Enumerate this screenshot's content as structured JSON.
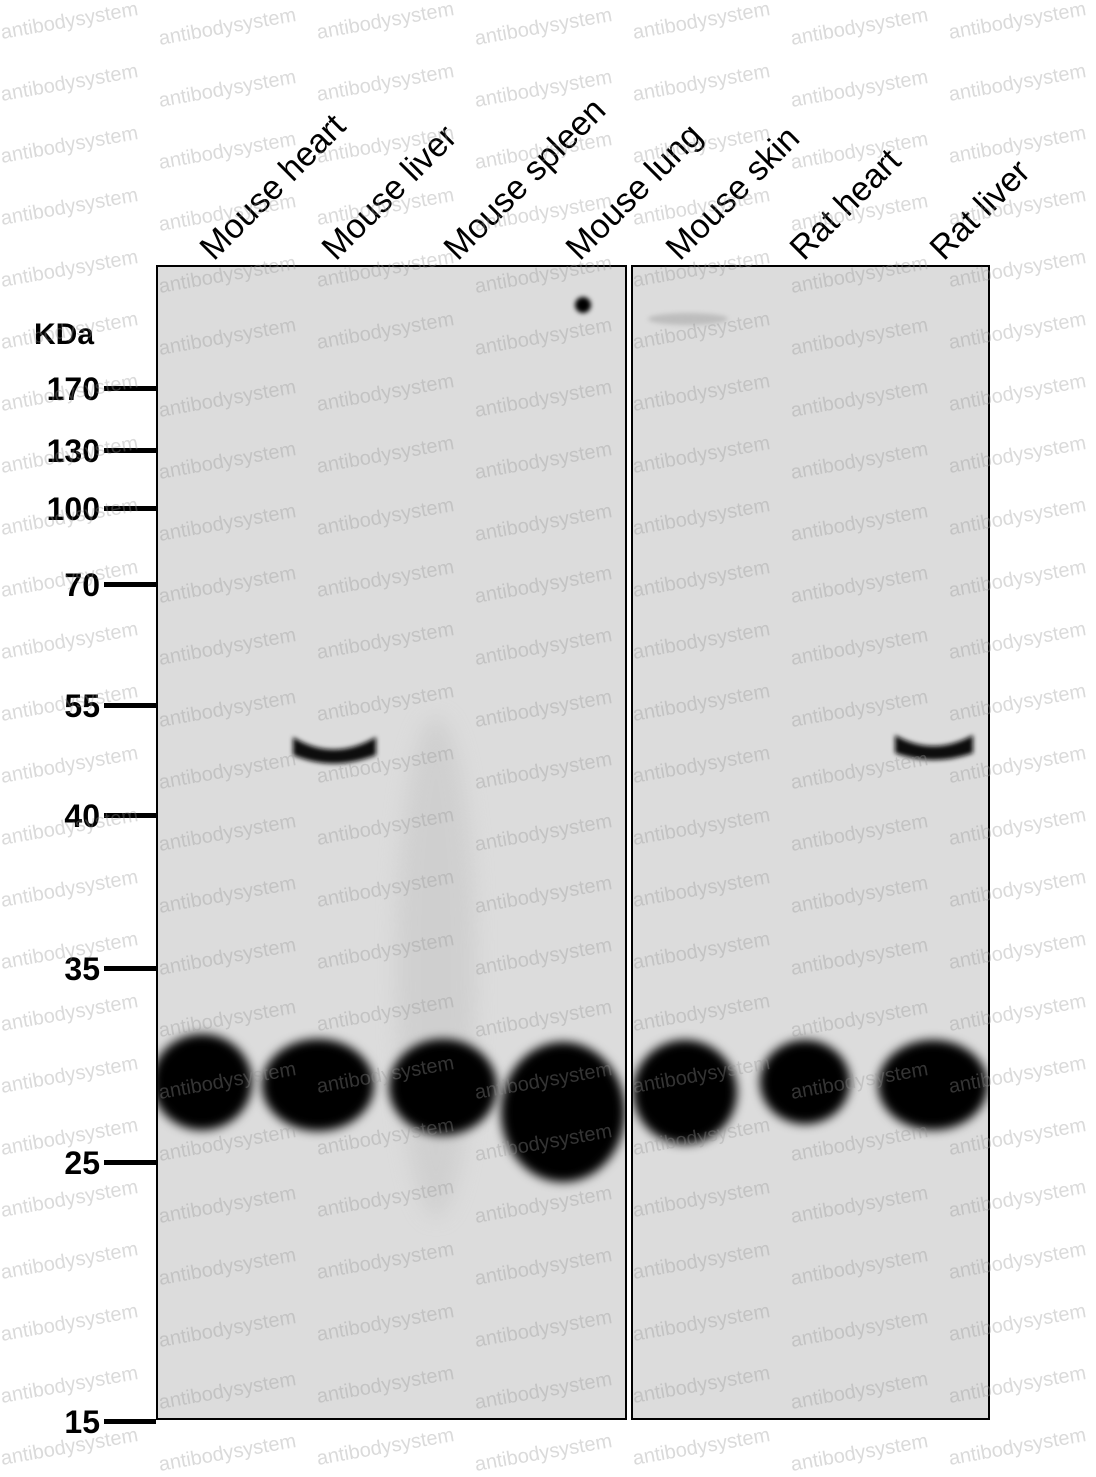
{
  "lanes": [
    "Mouse heart",
    "Mouse liver",
    "Mouse spleen",
    "Mouse lung",
    "Mouse skin",
    "Rat heart",
    "Rat liver"
  ],
  "unit": "KDa",
  "markers": [
    "170",
    "130",
    "100",
    "70",
    "55",
    "40",
    "35",
    "25",
    "15"
  ],
  "watermark": "antibodysystem",
  "colors": {
    "membrane": "#dcdcdc",
    "band": "#000000"
  }
}
